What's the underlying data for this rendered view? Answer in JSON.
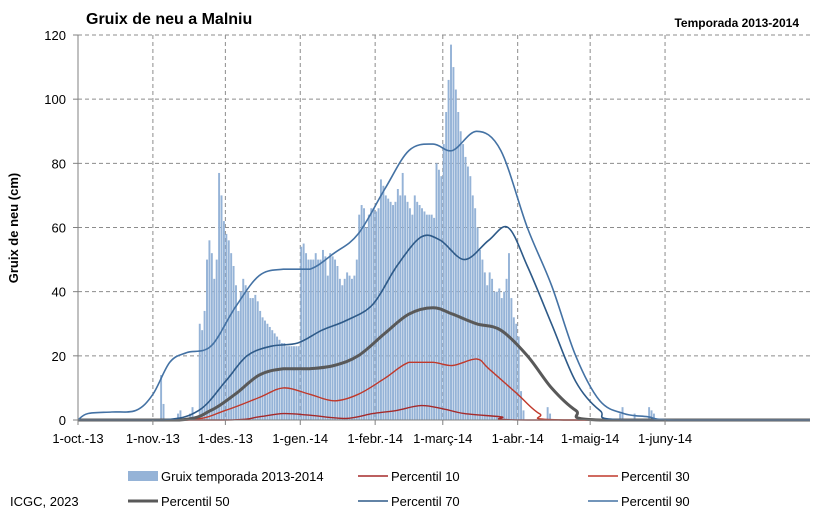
{
  "chart_data": {
    "type": "line",
    "title": "Gruix de neu a Malniu",
    "subtitle": "Temporada 2013-2014",
    "ylabel": "Gruix de neu (cm)",
    "xlabel": "",
    "credit": "ICGC, 2023",
    "ylim": [
      0,
      120
    ],
    "yticks": [
      0,
      20,
      40,
      60,
      80,
      100,
      120
    ],
    "x_range": [
      "2013-10-01",
      "2014-07-31"
    ],
    "xticks": [
      {
        "date": "2013-10-01",
        "label": "1-oct.-13"
      },
      {
        "date": "2013-11-01",
        "label": "1-nov.-13"
      },
      {
        "date": "2013-12-01",
        "label": "1-des.-13"
      },
      {
        "date": "2014-01-01",
        "label": "1-gen.-14"
      },
      {
        "date": "2014-02-01",
        "label": "1-febr.-14"
      },
      {
        "date": "2014-03-01",
        "label": "1-març-14"
      },
      {
        "date": "2014-04-01",
        "label": "1-abr.-14"
      },
      {
        "date": "2014-05-01",
        "label": "1-maig-14"
      },
      {
        "date": "2014-06-01",
        "label": "1-juny-14"
      }
    ],
    "grid": "dashed",
    "legend_position": "bottom",
    "bars": {
      "name": "Gruix temporada 2013-2014",
      "color": "#95B3D7",
      "values": [
        [
          "2013-11-04",
          14
        ],
        [
          "2013-11-05",
          5
        ],
        [
          "2013-11-11",
          2
        ],
        [
          "2013-11-12",
          3
        ],
        [
          "2013-11-16",
          2
        ],
        [
          "2013-11-17",
          4
        ],
        [
          "2013-11-20",
          30
        ],
        [
          "2013-11-21",
          28
        ],
        [
          "2013-11-22",
          34
        ],
        [
          "2013-11-23",
          50
        ],
        [
          "2013-11-24",
          56
        ],
        [
          "2013-11-25",
          52
        ],
        [
          "2013-11-26",
          44
        ],
        [
          "2013-11-27",
          50
        ],
        [
          "2013-11-28",
          77
        ],
        [
          "2013-11-29",
          70
        ],
        [
          "2013-11-30",
          62
        ],
        [
          "2013-12-01",
          58
        ],
        [
          "2013-12-02",
          56
        ],
        [
          "2013-12-03",
          52
        ],
        [
          "2013-12-04",
          48
        ],
        [
          "2013-12-05",
          42
        ],
        [
          "2013-12-06",
          34
        ],
        [
          "2013-12-07",
          40
        ],
        [
          "2013-12-08",
          44
        ],
        [
          "2013-12-09",
          42
        ],
        [
          "2013-12-10",
          40
        ],
        [
          "2013-12-11",
          38
        ],
        [
          "2013-12-12",
          38
        ],
        [
          "2013-12-13",
          39
        ],
        [
          "2013-12-14",
          37
        ],
        [
          "2013-12-15",
          34
        ],
        [
          "2013-12-16",
          32
        ],
        [
          "2013-12-17",
          31
        ],
        [
          "2013-12-18",
          30
        ],
        [
          "2013-12-19",
          29
        ],
        [
          "2013-12-20",
          28
        ],
        [
          "2013-12-21",
          27
        ],
        [
          "2013-12-22",
          26
        ],
        [
          "2013-12-23",
          25
        ],
        [
          "2013-12-24",
          24
        ],
        [
          "2013-12-25",
          24
        ],
        [
          "2013-12-26",
          23
        ],
        [
          "2013-12-27",
          23
        ],
        [
          "2013-12-28",
          23
        ],
        [
          "2013-12-29",
          23
        ],
        [
          "2013-12-30",
          23
        ],
        [
          "2013-12-31",
          23
        ],
        [
          "2014-01-01",
          54
        ],
        [
          "2014-01-02",
          55
        ],
        [
          "2014-01-03",
          52
        ],
        [
          "2014-01-04",
          50
        ],
        [
          "2014-01-05",
          50
        ],
        [
          "2014-01-06",
          50
        ],
        [
          "2014-01-07",
          52
        ],
        [
          "2014-01-08",
          50
        ],
        [
          "2014-01-09",
          50
        ],
        [
          "2014-01-10",
          53
        ],
        [
          "2014-01-11",
          51
        ],
        [
          "2014-01-12",
          45
        ],
        [
          "2014-01-13",
          52
        ],
        [
          "2014-01-14",
          51
        ],
        [
          "2014-01-15",
          50
        ],
        [
          "2014-01-16",
          48
        ],
        [
          "2014-01-17",
          44
        ],
        [
          "2014-01-18",
          42
        ],
        [
          "2014-01-19",
          44
        ],
        [
          "2014-01-20",
          46
        ],
        [
          "2014-01-21",
          45
        ],
        [
          "2014-01-22",
          44
        ],
        [
          "2014-01-23",
          45
        ],
        [
          "2014-01-24",
          50
        ],
        [
          "2014-01-25",
          64
        ],
        [
          "2014-01-26",
          67
        ],
        [
          "2014-01-27",
          66
        ],
        [
          "2014-01-28",
          60
        ],
        [
          "2014-01-29",
          64
        ],
        [
          "2014-01-30",
          66
        ],
        [
          "2014-01-31",
          66
        ],
        [
          "2014-02-01",
          65
        ],
        [
          "2014-02-02",
          66
        ],
        [
          "2014-02-03",
          75
        ],
        [
          "2014-02-04",
          73
        ],
        [
          "2014-02-05",
          70
        ],
        [
          "2014-02-06",
          69
        ],
        [
          "2014-02-07",
          68
        ],
        [
          "2014-02-08",
          67
        ],
        [
          "2014-02-09",
          68
        ],
        [
          "2014-02-10",
          72
        ],
        [
          "2014-02-11",
          70
        ],
        [
          "2014-02-12",
          77
        ],
        [
          "2014-02-13",
          70
        ],
        [
          "2014-02-14",
          68
        ],
        [
          "2014-02-15",
          66
        ],
        [
          "2014-02-16",
          64
        ],
        [
          "2014-02-17",
          70
        ],
        [
          "2014-02-18",
          68
        ],
        [
          "2014-02-19",
          67
        ],
        [
          "2014-02-20",
          66
        ],
        [
          "2014-02-21",
          65
        ],
        [
          "2014-02-22",
          64
        ],
        [
          "2014-02-23",
          64
        ],
        [
          "2014-02-24",
          64
        ],
        [
          "2014-02-25",
          63
        ],
        [
          "2014-02-26",
          80
        ],
        [
          "2014-02-27",
          78
        ],
        [
          "2014-02-28",
          76
        ],
        [
          "2014-03-01",
          86
        ],
        [
          "2014-03-02",
          96
        ],
        [
          "2014-03-03",
          106
        ],
        [
          "2014-03-04",
          117
        ],
        [
          "2014-03-05",
          110
        ],
        [
          "2014-03-06",
          103
        ],
        [
          "2014-03-07",
          96
        ],
        [
          "2014-03-08",
          90
        ],
        [
          "2014-03-09",
          86
        ],
        [
          "2014-03-10",
          82
        ],
        [
          "2014-03-11",
          79
        ],
        [
          "2014-03-12",
          76
        ],
        [
          "2014-03-13",
          70
        ],
        [
          "2014-03-14",
          66
        ],
        [
          "2014-03-15",
          60
        ],
        [
          "2014-03-16",
          53
        ],
        [
          "2014-03-17",
          50
        ],
        [
          "2014-03-18",
          46
        ],
        [
          "2014-03-19",
          42
        ],
        [
          "2014-03-20",
          46
        ],
        [
          "2014-03-21",
          44
        ],
        [
          "2014-03-22",
          40
        ],
        [
          "2014-03-23",
          40
        ],
        [
          "2014-03-24",
          41
        ],
        [
          "2014-03-25",
          38
        ],
        [
          "2014-03-26",
          40
        ],
        [
          "2014-03-27",
          44
        ],
        [
          "2014-03-28",
          52
        ],
        [
          "2014-03-29",
          38
        ],
        [
          "2014-03-30",
          32
        ],
        [
          "2014-03-31",
          30
        ],
        [
          "2014-04-01",
          26
        ],
        [
          "2014-04-02",
          9
        ],
        [
          "2014-04-03",
          3
        ],
        [
          "2014-04-13",
          4
        ],
        [
          "2014-04-14",
          2
        ],
        [
          "2014-05-13",
          2
        ],
        [
          "2014-05-14",
          4
        ],
        [
          "2014-05-19",
          2
        ],
        [
          "2014-05-25",
          4
        ],
        [
          "2014-05-26",
          3
        ],
        [
          "2014-05-27",
          2
        ]
      ]
    },
    "series": [
      {
        "name": "Percentil 10",
        "color": "#A52A2A",
        "width": 1.4,
        "points": [
          [
            "2013-10-01",
            0
          ],
          [
            "2013-12-01",
            0
          ],
          [
            "2013-12-15",
            1
          ],
          [
            "2013-12-25",
            2
          ],
          [
            "2014-01-05",
            1.5
          ],
          [
            "2014-01-20",
            0.5
          ],
          [
            "2014-01-31",
            2
          ],
          [
            "2014-02-10",
            3
          ],
          [
            "2014-02-20",
            4.5
          ],
          [
            "2014-03-01",
            3.5
          ],
          [
            "2014-03-10",
            2
          ],
          [
            "2014-03-25",
            1
          ],
          [
            "2014-04-05",
            0
          ],
          [
            "2014-07-31",
            0
          ]
        ]
      },
      {
        "name": "Percentil 30",
        "color": "#C0392B",
        "width": 1.4,
        "points": [
          [
            "2013-10-01",
            0
          ],
          [
            "2013-11-15",
            0
          ],
          [
            "2013-12-01",
            3
          ],
          [
            "2013-12-15",
            7
          ],
          [
            "2013-12-25",
            10
          ],
          [
            "2014-01-05",
            8
          ],
          [
            "2014-01-15",
            6
          ],
          [
            "2014-01-25",
            8
          ],
          [
            "2014-02-05",
            13
          ],
          [
            "2014-02-15",
            18
          ],
          [
            "2014-02-25",
            18
          ],
          [
            "2014-03-05",
            17
          ],
          [
            "2014-03-15",
            19
          ],
          [
            "2014-03-20",
            16
          ],
          [
            "2014-04-01",
            8
          ],
          [
            "2014-04-10",
            2
          ],
          [
            "2014-04-20",
            0
          ],
          [
            "2014-07-31",
            0
          ]
        ]
      },
      {
        "name": "Percentil 50",
        "color": "#595959",
        "width": 3,
        "points": [
          [
            "2013-10-01",
            0
          ],
          [
            "2013-11-12",
            0
          ],
          [
            "2013-11-25",
            3
          ],
          [
            "2013-12-05",
            8
          ],
          [
            "2013-12-15",
            14
          ],
          [
            "2013-12-25",
            16
          ],
          [
            "2014-01-05",
            16
          ],
          [
            "2014-01-15",
            17
          ],
          [
            "2014-01-25",
            20
          ],
          [
            "2014-02-05",
            27
          ],
          [
            "2014-02-15",
            33
          ],
          [
            "2014-02-25",
            35
          ],
          [
            "2014-03-05",
            33
          ],
          [
            "2014-03-15",
            30
          ],
          [
            "2014-03-25",
            28
          ],
          [
            "2014-04-05",
            20
          ],
          [
            "2014-04-15",
            10
          ],
          [
            "2014-04-25",
            3
          ],
          [
            "2014-05-05",
            0
          ],
          [
            "2014-07-31",
            0
          ]
        ]
      },
      {
        "name": "Percentil 70",
        "color": "#2E5A88",
        "width": 1.6,
        "points": [
          [
            "2013-10-01",
            0
          ],
          [
            "2013-11-05",
            0
          ],
          [
            "2013-11-20",
            3
          ],
          [
            "2013-12-01",
            12
          ],
          [
            "2013-12-10",
            20
          ],
          [
            "2013-12-20",
            23
          ],
          [
            "2013-12-31",
            24
          ],
          [
            "2014-01-10",
            28
          ],
          [
            "2014-01-20",
            31
          ],
          [
            "2014-01-31",
            36
          ],
          [
            "2014-02-10",
            48
          ],
          [
            "2014-02-20",
            57
          ],
          [
            "2014-02-28",
            56
          ],
          [
            "2014-03-10",
            50
          ],
          [
            "2014-03-20",
            56
          ],
          [
            "2014-03-28",
            60
          ],
          [
            "2014-04-05",
            48
          ],
          [
            "2014-04-15",
            30
          ],
          [
            "2014-04-25",
            12
          ],
          [
            "2014-05-05",
            3
          ],
          [
            "2014-05-15",
            0
          ],
          [
            "2014-07-31",
            0
          ]
        ]
      },
      {
        "name": "Percentil 90",
        "color": "#4472A4",
        "width": 1.6,
        "points": [
          [
            "2013-10-01",
            0
          ],
          [
            "2013-10-05",
            2
          ],
          [
            "2013-10-15",
            2.5
          ],
          [
            "2013-10-25",
            3
          ],
          [
            "2013-11-01",
            8
          ],
          [
            "2013-11-08",
            18
          ],
          [
            "2013-11-15",
            21
          ],
          [
            "2013-11-25",
            23
          ],
          [
            "2013-12-05",
            35
          ],
          [
            "2013-12-15",
            45
          ],
          [
            "2013-12-25",
            47
          ],
          [
            "2014-01-05",
            47
          ],
          [
            "2014-01-15",
            52
          ],
          [
            "2014-01-25",
            58
          ],
          [
            "2014-02-05",
            72
          ],
          [
            "2014-02-15",
            84
          ],
          [
            "2014-02-25",
            86
          ],
          [
            "2014-03-05",
            84
          ],
          [
            "2014-03-15",
            90
          ],
          [
            "2014-03-25",
            84
          ],
          [
            "2014-04-05",
            60
          ],
          [
            "2014-04-15",
            42
          ],
          [
            "2014-04-25",
            20
          ],
          [
            "2014-05-05",
            6
          ],
          [
            "2014-05-15",
            2
          ],
          [
            "2014-05-25",
            1
          ],
          [
            "2014-06-05",
            0
          ],
          [
            "2014-07-31",
            0
          ]
        ]
      }
    ]
  }
}
